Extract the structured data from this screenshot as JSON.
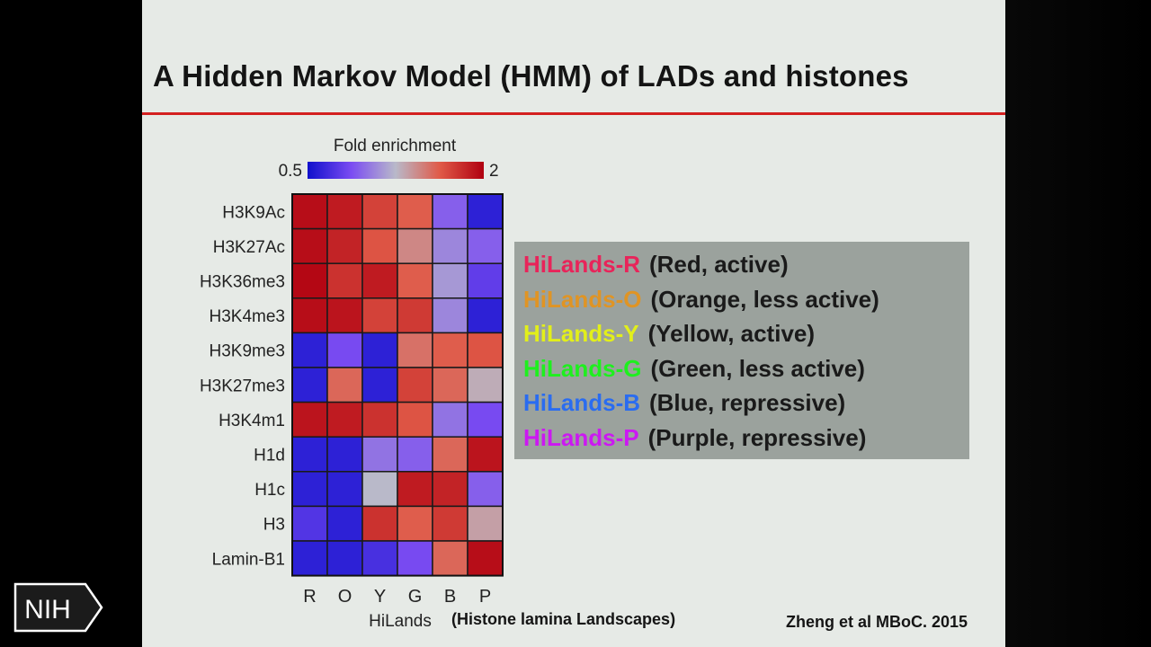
{
  "slide": {
    "title": "A Hidden Markov Model (HMM) of LADs and histones",
    "citation": "Zheng et al MBoC. 2015",
    "logo_text": "NIH"
  },
  "chart_data": {
    "type": "heatmap",
    "colorbar_label": "Fold enrichment",
    "colorbar_min_label": "0.5",
    "colorbar_max_label": "2",
    "value_range": [
      0.5,
      2
    ],
    "colormap": [
      "#1010cc",
      "#7b4cf2",
      "#b9b9c9",
      "#e05a48",
      "#b00010"
    ],
    "rows": [
      "H3K9Ac",
      "H3K27Ac",
      "H3K36me3",
      "H3K4me3",
      "H3K9me3",
      "H3K27me3",
      "H3K4m1",
      "H1d",
      "H1c",
      "H3",
      "Lamin-B1"
    ],
    "columns": [
      "R",
      "O",
      "Y",
      "G",
      "B",
      "P"
    ],
    "xlabel": "HiLands",
    "xlabel_note": "(Histone lamina Landscapes)",
    "values": [
      [
        1.9,
        1.8,
        1.55,
        1.4,
        0.75,
        0.55
      ],
      [
        1.9,
        1.75,
        1.45,
        1.2,
        0.85,
        0.75
      ],
      [
        1.95,
        1.65,
        1.8,
        1.4,
        0.9,
        0.65
      ],
      [
        1.9,
        1.85,
        1.55,
        1.6,
        0.85,
        0.55
      ],
      [
        0.55,
        0.7,
        0.55,
        1.3,
        1.4,
        1.45
      ],
      [
        0.55,
        1.35,
        0.55,
        1.55,
        1.35,
        1.05
      ],
      [
        1.85,
        1.8,
        1.65,
        1.45,
        0.8,
        0.7
      ],
      [
        0.55,
        0.55,
        0.8,
        0.75,
        1.35,
        1.85
      ],
      [
        0.55,
        0.55,
        1.0,
        1.8,
        1.75,
        0.75
      ],
      [
        0.62,
        0.55,
        1.65,
        1.4,
        1.6,
        1.1
      ],
      [
        0.55,
        0.55,
        0.6,
        0.7,
        1.35,
        1.9
      ]
    ]
  },
  "states": [
    {
      "name": "HiLands-R",
      "desc": "(Red, active)",
      "color": "#e8245a"
    },
    {
      "name": "HiLands-O",
      "desc": "(Orange, less active)",
      "color": "#e09424"
    },
    {
      "name": "HiLands-Y",
      "desc": "(Yellow, active)",
      "color": "#e2ef1a"
    },
    {
      "name": "HiLands-G",
      "desc": "(Green, less active)",
      "color": "#1ef01e"
    },
    {
      "name": "HiLands-B",
      "desc": "(Blue, repressive)",
      "color": "#2a6cf0"
    },
    {
      "name": "HiLands-P",
      "desc": "(Purple, repressive)",
      "color": "#cc18f2"
    }
  ]
}
